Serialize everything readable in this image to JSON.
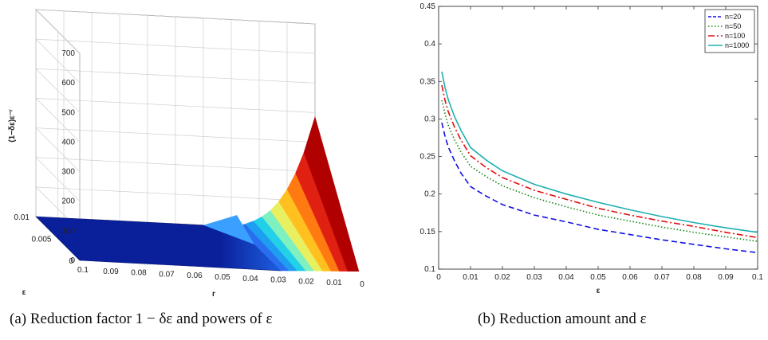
{
  "figure": {
    "caption_a": "(a) Reduction factor 1 − δε and powers of ε",
    "caption_b": "(b) Reduction amount and ε"
  },
  "colors": {
    "surface_dark": "#0a1f9a",
    "surface_mid": "#1d5fe0",
    "hot": "#c00000",
    "n20": "#1010e0",
    "n50": "#118811",
    "n100": "#e01010",
    "n1000": "#20b0b0"
  },
  "chart_data": [
    {
      "type": "surface",
      "title": "",
      "xlabel": "r",
      "ylabel": "ε",
      "zlabel": "(1−δε)ε⁻ʳ",
      "r_ticks": [
        "0.1",
        "0.09",
        "0.08",
        "0.07",
        "0.06",
        "0.05",
        "0.04",
        "0.03",
        "0.02",
        "0.01",
        "0"
      ],
      "eps_ticks": [
        "0.01",
        "0.005",
        "0"
      ],
      "z_ticks": [
        "0",
        "100",
        "200",
        "300",
        "400",
        "500",
        "600",
        "700"
      ],
      "r_range": [
        0,
        0.1
      ],
      "eps_range": [
        0,
        0.01
      ],
      "zlim": [
        0,
        700
      ],
      "peak": {
        "r": 0,
        "eps": 0.01,
        "z": 540
      },
      "grid": true
    },
    {
      "type": "line",
      "title": "",
      "xlabel": "ε",
      "ylabel": "",
      "xlim": [
        0,
        0.1
      ],
      "ylim": [
        0.1,
        0.45
      ],
      "x_ticks": [
        "0",
        "0.01",
        "0.02",
        "0.03",
        "0.04",
        "0.05",
        "0.06",
        "0.07",
        "0.08",
        "0.09",
        "0.1"
      ],
      "y_ticks": [
        "0.1",
        "0.15",
        "0.2",
        "0.25",
        "0.3",
        "0.35",
        "0.4",
        "0.45"
      ],
      "legend_position": "top-right",
      "grid": false,
      "x": [
        0.001,
        0.002,
        0.003,
        0.005,
        0.007,
        0.01,
        0.015,
        0.02,
        0.03,
        0.04,
        0.05,
        0.06,
        0.07,
        0.08,
        0.09,
        0.1
      ],
      "series": [
        {
          "name": "n=20",
          "style": "dashed",
          "color": "#1010e0",
          "values": [
            0.295,
            0.277,
            0.263,
            0.244,
            0.228,
            0.21,
            0.197,
            0.186,
            0.172,
            0.163,
            0.153,
            0.146,
            0.139,
            0.133,
            0.127,
            0.122
          ]
        },
        {
          "name": "n=50",
          "style": "dotted",
          "color": "#118811",
          "values": [
            0.325,
            0.307,
            0.292,
            0.272,
            0.256,
            0.237,
            0.223,
            0.211,
            0.195,
            0.183,
            0.172,
            0.164,
            0.156,
            0.149,
            0.143,
            0.137
          ]
        },
        {
          "name": "n=100",
          "style": "dashdot",
          "color": "#e01010",
          "values": [
            0.345,
            0.325,
            0.31,
            0.289,
            0.272,
            0.251,
            0.235,
            0.222,
            0.205,
            0.193,
            0.181,
            0.172,
            0.164,
            0.157,
            0.149,
            0.142
          ]
        },
        {
          "name": "n=1000",
          "style": "solid",
          "color": "#20b0b0",
          "values": [
            0.363,
            0.342,
            0.326,
            0.303,
            0.285,
            0.262,
            0.245,
            0.231,
            0.213,
            0.2,
            0.189,
            0.179,
            0.17,
            0.162,
            0.155,
            0.149
          ]
        }
      ]
    }
  ]
}
